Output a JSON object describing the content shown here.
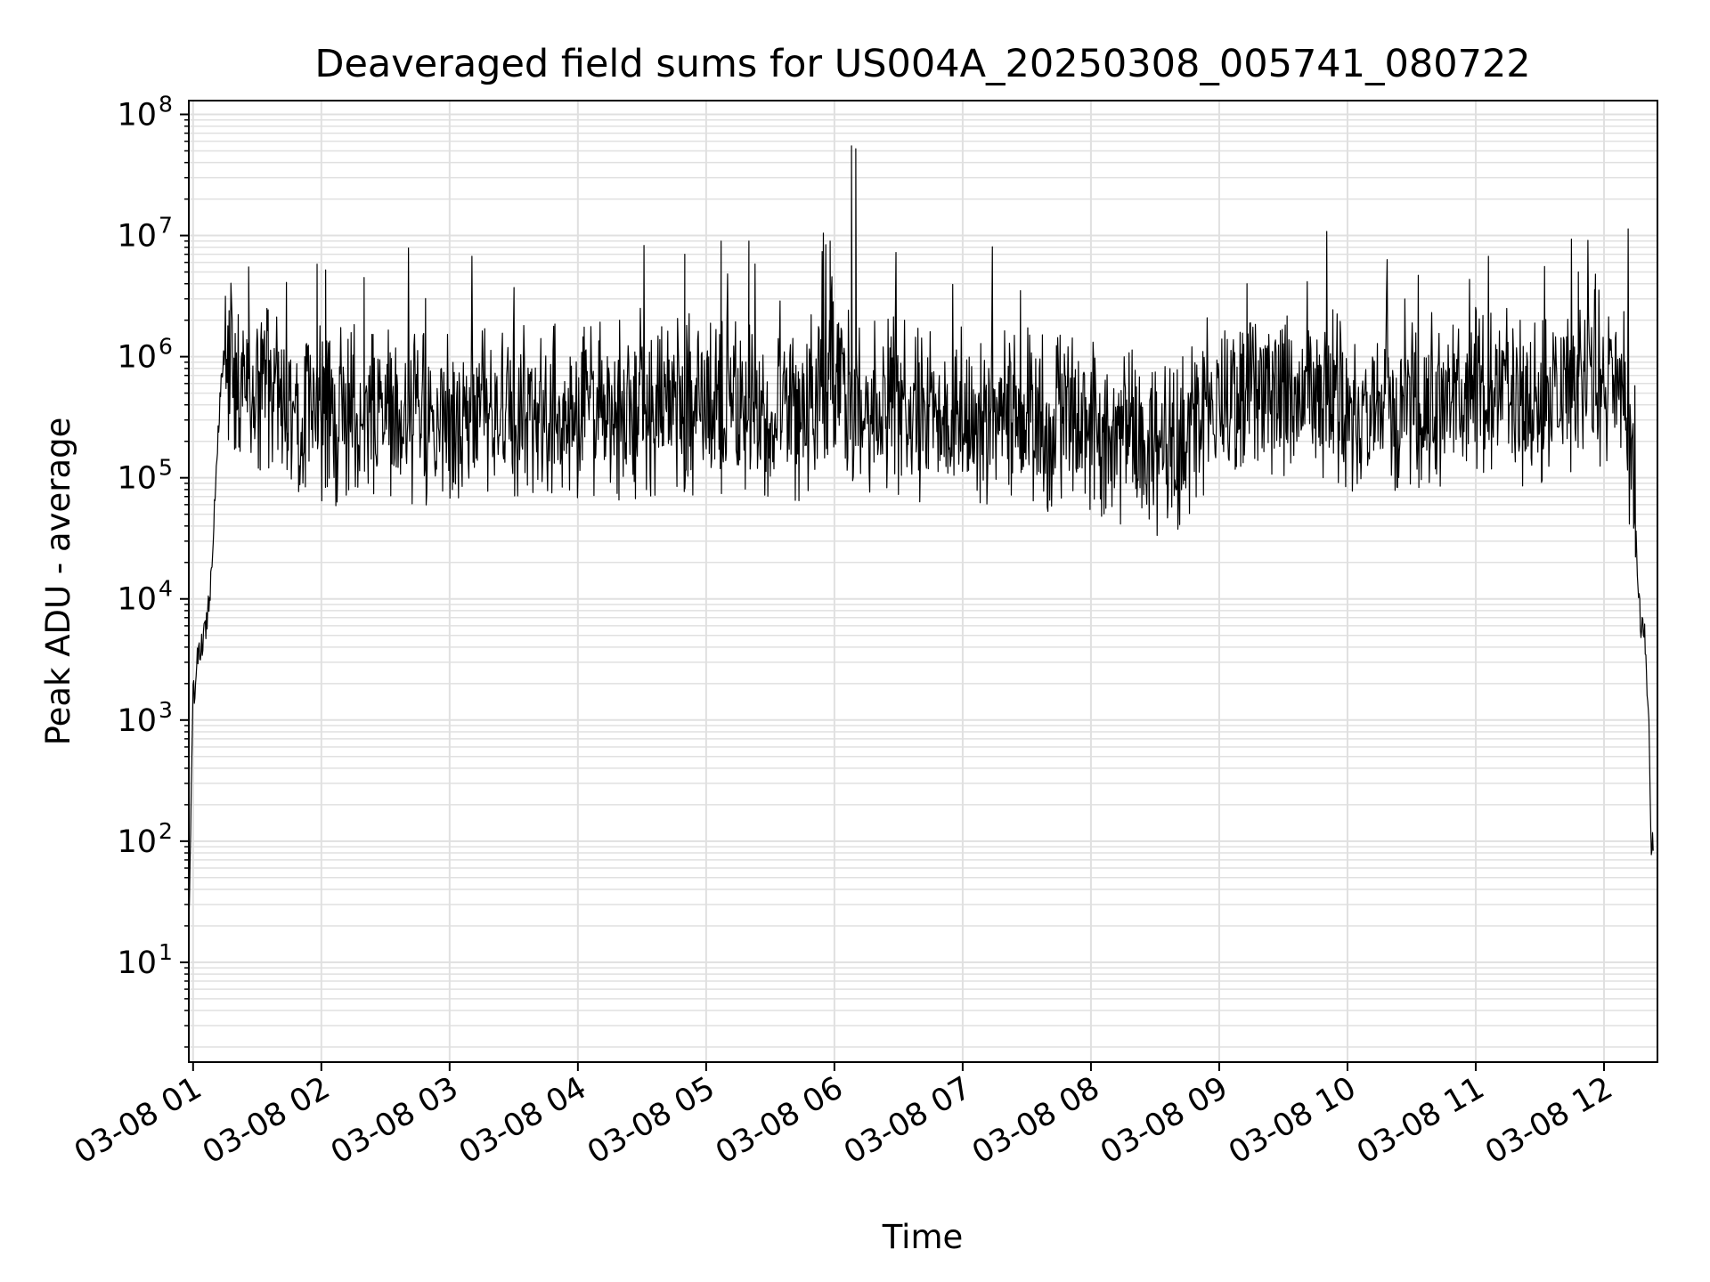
{
  "chart_data": {
    "type": "line",
    "title": "Deaveraged field sums for US004A_20250308_005741_080722",
    "xlabel": "Time",
    "ylabel": "Peak ADU - average",
    "yscale": "log",
    "ylim": [
      1.5,
      130000000
    ],
    "xlim": [
      "03-08 00:58",
      "03-08 12:25"
    ],
    "x_ticks": [
      {
        "value": "03-08 01:00",
        "label": "03-08 01"
      },
      {
        "value": "03-08 02:00",
        "label": "03-08 02"
      },
      {
        "value": "03-08 03:00",
        "label": "03-08 03"
      },
      {
        "value": "03-08 04:00",
        "label": "03-08 04"
      },
      {
        "value": "03-08 05:00",
        "label": "03-08 05"
      },
      {
        "value": "03-08 06:00",
        "label": "03-08 06"
      },
      {
        "value": "03-08 07:00",
        "label": "03-08 07"
      },
      {
        "value": "03-08 08:00",
        "label": "03-08 08"
      },
      {
        "value": "03-08 09:00",
        "label": "03-08 09"
      },
      {
        "value": "03-08 10:00",
        "label": "03-08 10"
      },
      {
        "value": "03-08 11:00",
        "label": "03-08 11"
      },
      {
        "value": "03-08 12:00",
        "label": "03-08 12"
      }
    ],
    "y_ticks": [
      {
        "value": 10,
        "base": "10",
        "exp": "1"
      },
      {
        "value": 100,
        "base": "10",
        "exp": "2"
      },
      {
        "value": 1000,
        "base": "10",
        "exp": "3"
      },
      {
        "value": 10000,
        "base": "10",
        "exp": "4"
      },
      {
        "value": 100000,
        "base": "10",
        "exp": "5"
      },
      {
        "value": 1000000,
        "base": "10",
        "exp": "6"
      },
      {
        "value": 10000000,
        "base": "10",
        "exp": "7"
      },
      {
        "value": 100000000,
        "base": "10",
        "exp": "8"
      }
    ],
    "grid": true,
    "line_color": "#000000",
    "grid_color": "#e0e0e0",
    "series": [
      {
        "x": [
          "03-08 00:58",
          "03-08 01:00",
          "03-08 01:02",
          "03-08 01:04",
          "03-08 01:06",
          "03-08 01:08",
          "03-08 01:10",
          "03-08 01:12",
          "03-08 01:14",
          "03-08 01:16",
          "03-08 01:20",
          "03-08 01:30",
          "03-08 01:45",
          "03-08 02:00",
          "03-08 02:15",
          "03-08 02:30",
          "03-08 02:45",
          "03-08 03:00",
          "03-08 03:15",
          "03-08 03:30",
          "03-08 03:45",
          "03-08 04:00",
          "03-08 04:15",
          "03-08 04:30",
          "03-08 04:45",
          "03-08 05:00",
          "03-08 05:15",
          "03-08 05:30",
          "03-08 05:45",
          "03-08 05:52",
          "03-08 06:00",
          "03-08 06:10",
          "03-08 06:20",
          "03-08 06:30",
          "03-08 06:45",
          "03-08 07:00",
          "03-08 07:15",
          "03-08 07:30",
          "03-08 07:45",
          "03-08 08:00",
          "03-08 08:15",
          "03-08 08:30",
          "03-08 08:45",
          "03-08 09:00",
          "03-08 09:15",
          "03-08 09:30",
          "03-08 09:45",
          "03-08 10:00",
          "03-08 10:15",
          "03-08 10:30",
          "03-08 10:45",
          "03-08 11:00",
          "03-08 11:15",
          "03-08 11:30",
          "03-08 11:45",
          "03-08 12:00",
          "03-08 12:06",
          "03-08 12:10",
          "03-08 12:14",
          "03-08 12:17",
          "03-08 12:19",
          "03-08 12:21",
          "03-08 12:22",
          "03-08 12:23"
        ],
        "y": [
          20,
          1500,
          3000,
          4000,
          6000,
          12000,
          60000,
          300000,
          900000,
          1100000,
          700000,
          500000,
          400000,
          350000,
          300000,
          350000,
          330000,
          320000,
          330000,
          340000,
          350000,
          350000,
          360000,
          370000,
          380000,
          400000,
          350000,
          300000,
          320000,
          600000,
          900000,
          450000,
          400000,
          380000,
          330000,
          320000,
          300000,
          310000,
          290000,
          280000,
          220000,
          180000,
          200000,
          400000,
          700000,
          550000,
          500000,
          400000,
          350000,
          420000,
          450000,
          500000,
          450000,
          480000,
          550000,
          700000,
          600000,
          450000,
          80000,
          6000,
          5000,
          1000,
          100,
          90
        ]
      }
    ],
    "spikes": [
      {
        "x": "03-08 01:26",
        "y": 5500000
      },
      {
        "x": "03-08 01:58",
        "y": 5800000
      },
      {
        "x": "03-08 02:02",
        "y": 5200000
      },
      {
        "x": "03-08 02:20",
        "y": 4500000
      },
      {
        "x": "03-08 04:50",
        "y": 7000000
      },
      {
        "x": "03-08 05:07",
        "y": 9000000
      },
      {
        "x": "03-08 05:20",
        "y": 9000000
      },
      {
        "x": "03-08 05:58",
        "y": 9000000
      },
      {
        "x": "03-08 06:08",
        "y": 55000000
      },
      {
        "x": "03-08 06:10",
        "y": 52000000
      },
      {
        "x": "03-08 09:13",
        "y": 4000000
      },
      {
        "x": "03-08 11:48",
        "y": 5000000
      },
      {
        "x": "03-08 11:56",
        "y": 4800000
      }
    ]
  }
}
